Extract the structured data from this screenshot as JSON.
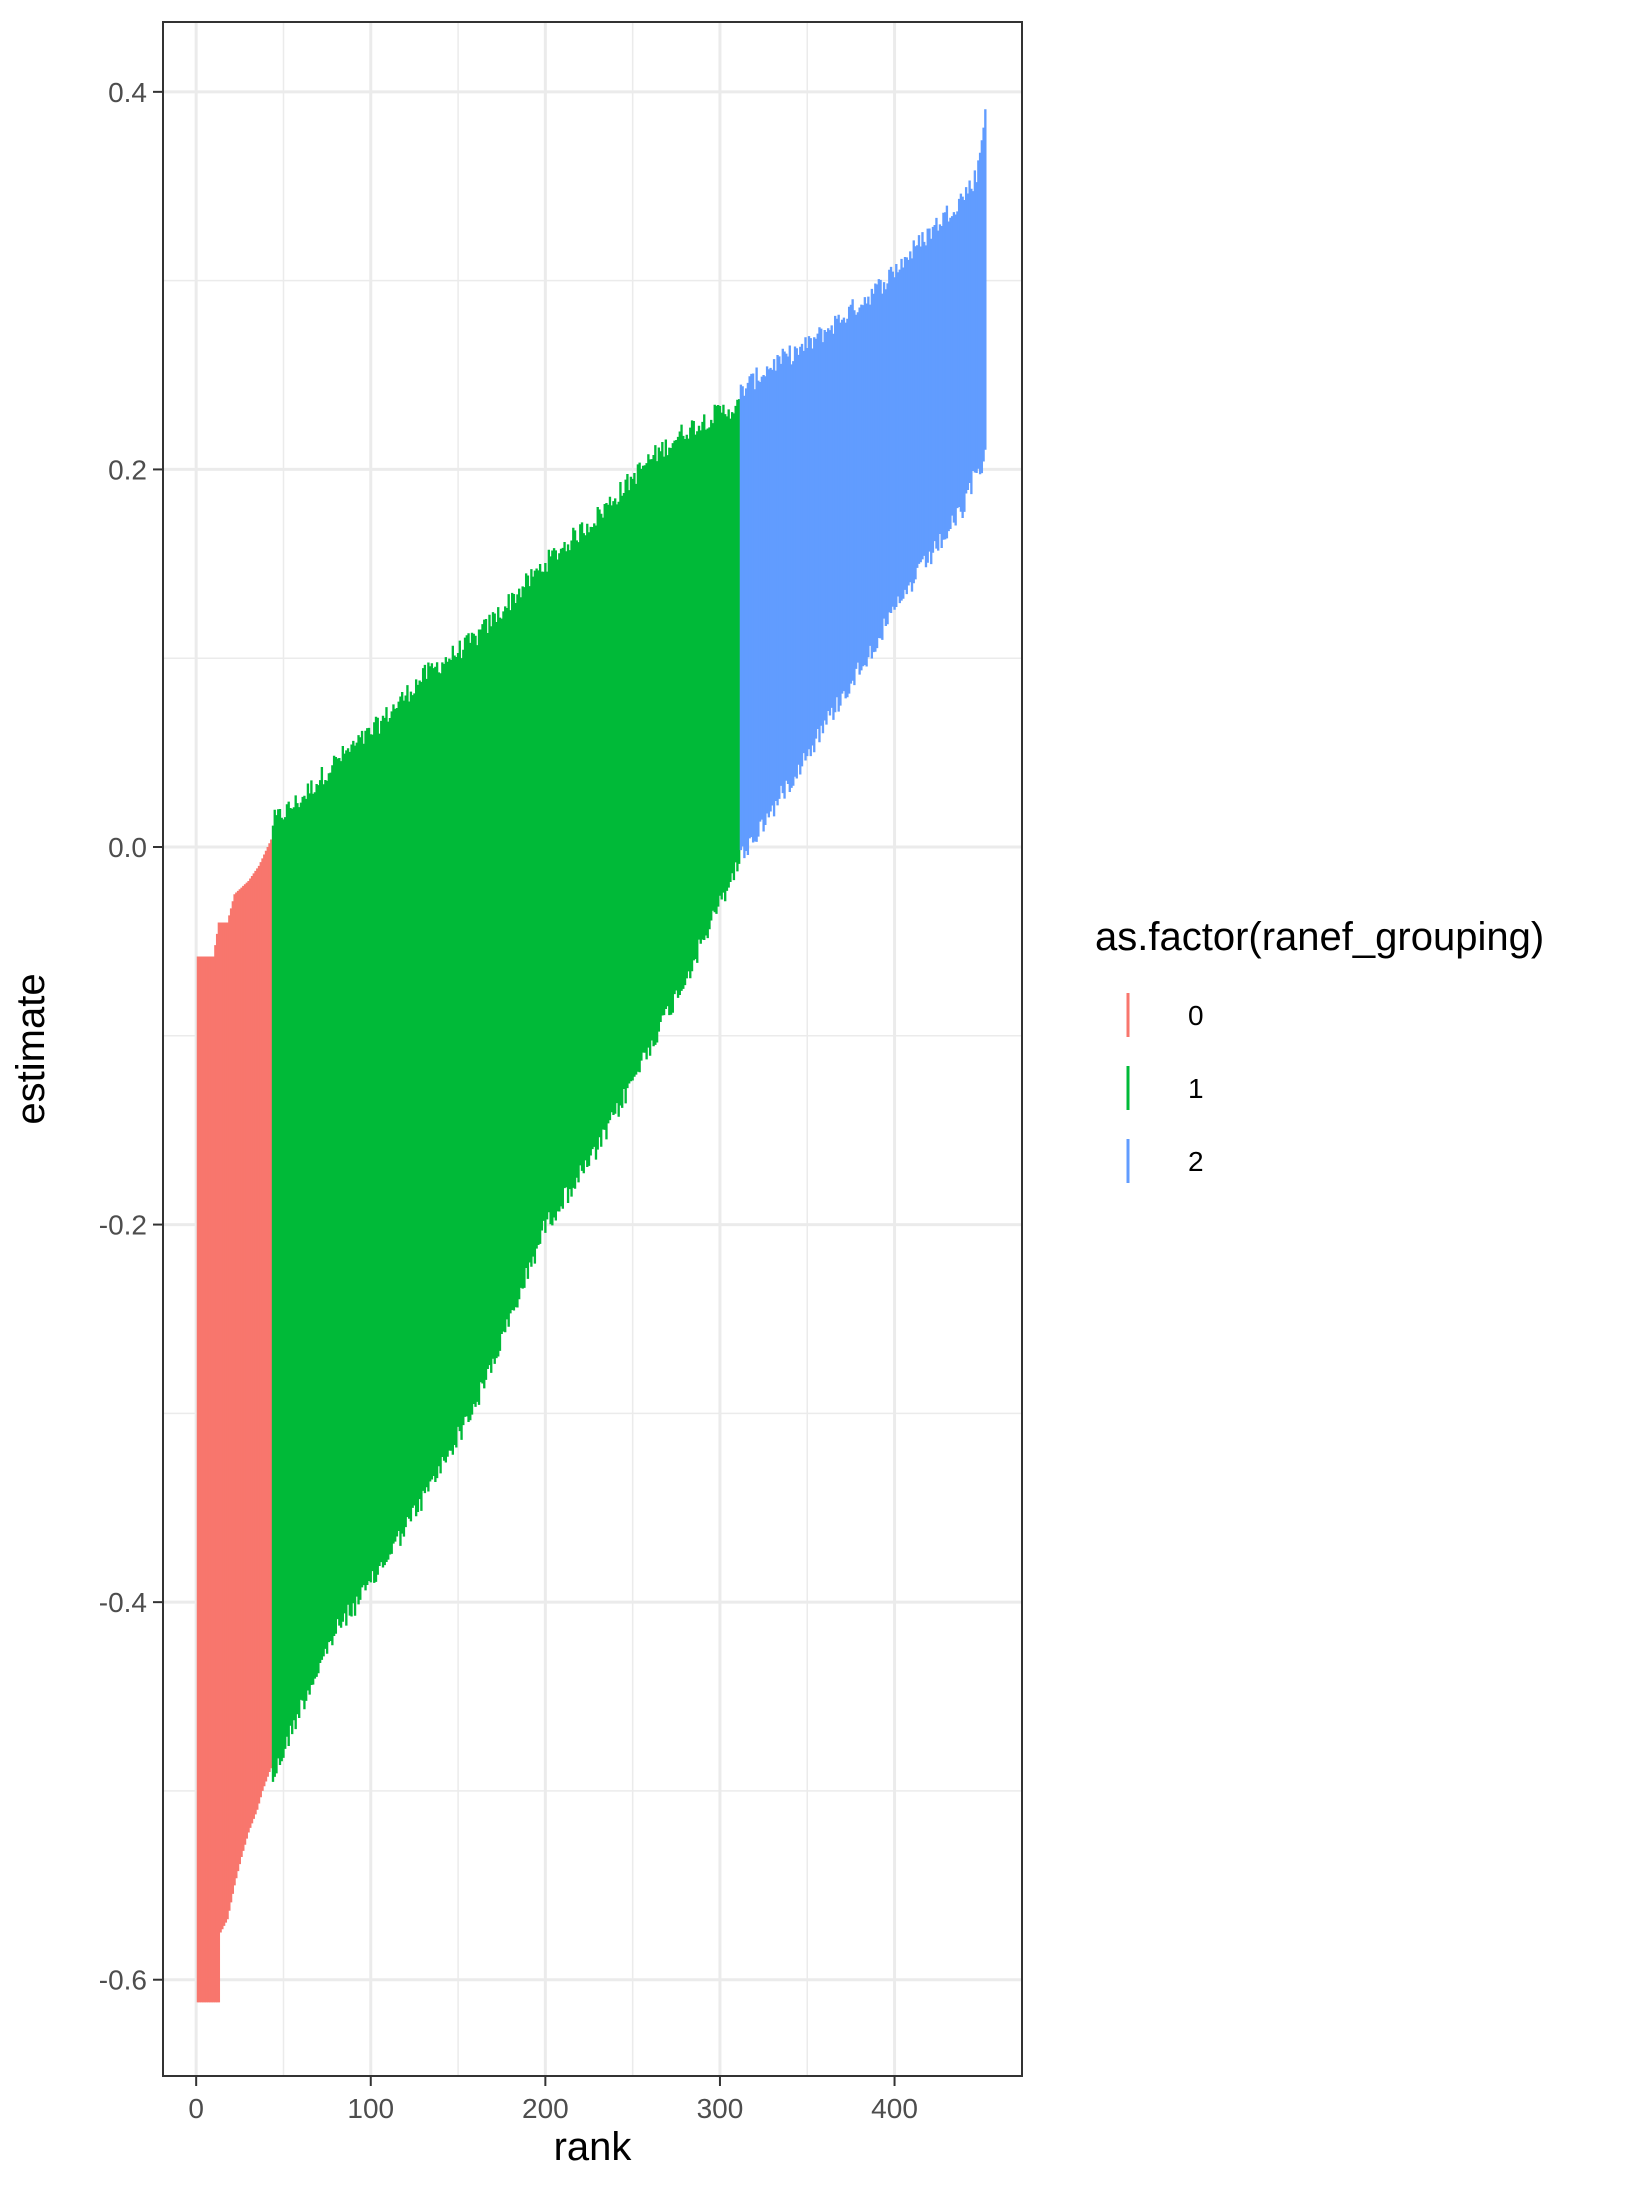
{
  "chart_data": {
    "type": "linerange",
    "xlabel": "rank",
    "ylabel": "estimate",
    "xlim": [
      -19,
      473
    ],
    "ylim": [
      -0.651,
      0.437
    ],
    "x_ticks": [
      0,
      100,
      200,
      300,
      400
    ],
    "x_tick_labels": [
      "0",
      "100",
      "200",
      "300",
      "400"
    ],
    "x_minor_ticks": [
      50,
      150,
      250,
      350
    ],
    "y_ticks": [
      -0.6,
      -0.4,
      -0.2,
      0.0,
      0.2,
      0.4
    ],
    "y_tick_labels": [
      "-0.6",
      "-0.4",
      "-0.2",
      "0.0",
      "0.2",
      "0.4"
    ],
    "y_minor_ticks": [
      -0.5,
      -0.3,
      -0.1,
      0.1,
      0.3
    ],
    "grid": true,
    "legend": {
      "title": "as.factor(ranef_grouping)",
      "position": "right",
      "entries": [
        "0",
        "1",
        "2"
      ]
    },
    "series": [
      {
        "name": "0",
        "color": "#F8766D",
        "x_range": [
          1,
          43
        ],
        "lower": [
          [
            1,
            -0.612
          ],
          [
            13,
            -0.612
          ],
          [
            14,
            -0.575
          ],
          [
            18,
            -0.568
          ],
          [
            22,
            -0.55
          ],
          [
            26,
            -0.535
          ],
          [
            30,
            -0.522
          ],
          [
            35,
            -0.51
          ],
          [
            38,
            -0.5
          ],
          [
            42,
            -0.49
          ],
          [
            43,
            -0.488
          ]
        ],
        "upper": [
          [
            1,
            -0.058
          ],
          [
            10,
            -0.058
          ],
          [
            13,
            -0.04
          ],
          [
            18,
            -0.04
          ],
          [
            22,
            -0.025
          ],
          [
            30,
            -0.018
          ],
          [
            36,
            -0.01
          ],
          [
            40,
            -0.002
          ],
          [
            43,
            0.004
          ]
        ]
      },
      {
        "name": "1",
        "color": "#00BA38",
        "x_range": [
          44,
          311
        ],
        "lower": [
          [
            44,
            -0.488
          ],
          [
            60,
            -0.45
          ],
          [
            80,
            -0.41
          ],
          [
            100,
            -0.385
          ],
          [
            130,
            -0.34
          ],
          [
            160,
            -0.29
          ],
          [
            180,
            -0.245
          ],
          [
            200,
            -0.195
          ],
          [
            230,
            -0.155
          ],
          [
            260,
            -0.1
          ],
          [
            280,
            -0.065
          ],
          [
            300,
            -0.025
          ],
          [
            311,
            -0.002
          ]
        ],
        "upper": [
          [
            44,
            0.008
          ],
          [
            60,
            0.02
          ],
          [
            80,
            0.04
          ],
          [
            100,
            0.055
          ],
          [
            130,
            0.085
          ],
          [
            160,
            0.105
          ],
          [
            180,
            0.125
          ],
          [
            200,
            0.145
          ],
          [
            230,
            0.17
          ],
          [
            260,
            0.2
          ],
          [
            280,
            0.215
          ],
          [
            300,
            0.225
          ],
          [
            311,
            0.228
          ]
        ]
      },
      {
        "name": "2",
        "color": "#619CFF",
        "x_range": [
          312,
          452
        ],
        "lower": [
          [
            312,
            0.0
          ],
          [
            330,
            0.025
          ],
          [
            350,
            0.055
          ],
          [
            370,
            0.085
          ],
          [
            390,
            0.115
          ],
          [
            410,
            0.145
          ],
          [
            425,
            0.165
          ],
          [
            440,
            0.185
          ],
          [
            445,
            0.2
          ],
          [
            448,
            0.205
          ],
          [
            452,
            0.212
          ]
        ],
        "upper": [
          [
            312,
            0.236
          ],
          [
            330,
            0.25
          ],
          [
            350,
            0.26
          ],
          [
            370,
            0.275
          ],
          [
            390,
            0.29
          ],
          [
            410,
            0.31
          ],
          [
            425,
            0.325
          ],
          [
            440,
            0.34
          ],
          [
            447,
            0.35
          ],
          [
            450,
            0.37
          ],
          [
            452,
            0.386
          ]
        ]
      }
    ]
  }
}
